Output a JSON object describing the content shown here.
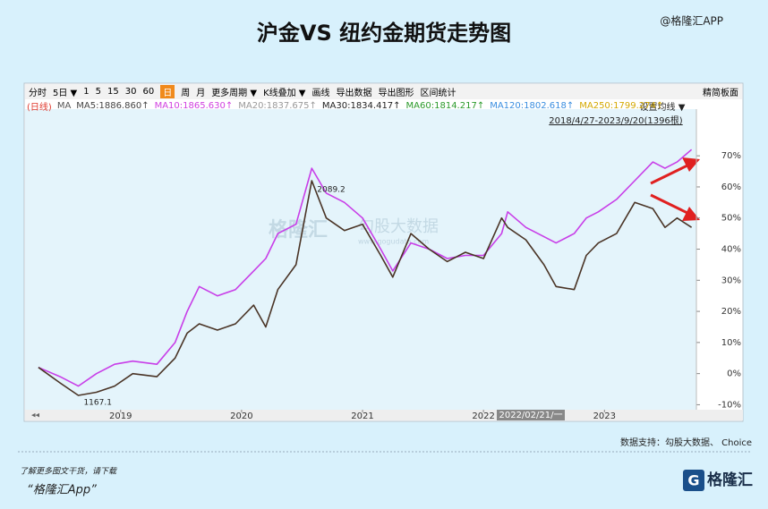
{
  "header": {
    "title": "沪金VS 纽约金期货走势图",
    "watermark": "@格隆汇APP"
  },
  "toolbar": {
    "items": [
      "分时",
      "5日 ▼",
      "1",
      "5",
      "15",
      "30",
      "60",
      "日",
      "周",
      "月",
      "更多周期 ▼",
      "K线叠加 ▼",
      "画线",
      "导出数据",
      "导出图形",
      "区间统计"
    ],
    "selected": "日",
    "right": "精简板面"
  },
  "ma_legend": [
    {
      "label": "(日线)",
      "color": "#e0382c"
    },
    {
      "label": "MA",
      "color": "#555555"
    },
    {
      "label": "MA5:1886.860↑",
      "color": "#444444"
    },
    {
      "label": "MA10:1865.630↑",
      "color": "#d040e0"
    },
    {
      "label": "MA20:1837.675↑",
      "color": "#999999"
    },
    {
      "label": "MA30:1834.417↑",
      "color": "#222222"
    },
    {
      "label": "MA60:1814.217↑",
      "color": "#2a9a2a"
    },
    {
      "label": "MA120:1802.618↑",
      "color": "#3a8ee0"
    },
    {
      "label": "MA250:1799.274↑",
      "color": "#d4a800"
    }
  ],
  "chart_data": {
    "type": "line",
    "setting": "设置均线 ▼",
    "range_label": "2018/4/27-2023/9/20(1396根)",
    "cursor_label": "2022/02/21/一",
    "background_text": [
      "格隆汇",
      "勾股大数据",
      "www.gogudata.com"
    ],
    "annotations": [
      "2089.2",
      "1167.1"
    ],
    "x": [
      2018.32,
      2018.5,
      2018.65,
      2018.8,
      2018.95,
      2019.1,
      2019.3,
      2019.45,
      2019.55,
      2019.65,
      2019.8,
      2019.95,
      2020.1,
      2020.2,
      2020.3,
      2020.45,
      2020.58,
      2020.7,
      2020.85,
      2021.0,
      2021.15,
      2021.25,
      2021.4,
      2021.55,
      2021.7,
      2021.85,
      2022.0,
      2022.15,
      2022.2,
      2022.35,
      2022.5,
      2022.6,
      2022.75,
      2022.85,
      2022.95,
      2023.1,
      2023.25,
      2023.4,
      2023.5,
      2023.6,
      2023.72
    ],
    "series": [
      {
        "color": "#c83ee8",
        "values": [
          2,
          -1,
          -4,
          0,
          3,
          4,
          3,
          10,
          20,
          28,
          25,
          27,
          33,
          37,
          45,
          48,
          66,
          58,
          55,
          50,
          40,
          33,
          42,
          40,
          37,
          38,
          38,
          45,
          52,
          47,
          44,
          42,
          45,
          50,
          52,
          56,
          62,
          68,
          66,
          68,
          72
        ]
      },
      {
        "color": "#4a3426",
        "values": [
          2,
          -3,
          -7,
          -6,
          -4,
          0,
          -1,
          5,
          13,
          16,
          14,
          16,
          22,
          15,
          27,
          35,
          62,
          50,
          46,
          48,
          38,
          31,
          45,
          40,
          36,
          39,
          37,
          50,
          47,
          43,
          35,
          28,
          27,
          38,
          42,
          45,
          55,
          53,
          47,
          50,
          47
        ]
      }
    ],
    "xlim": [
      2018.21,
      2023.76
    ],
    "ylim": [
      -11.6,
      85
    ],
    "xticks": [
      2019,
      2020,
      2021,
      2022,
      2023
    ],
    "yticks": [
      {
        "value": 70,
        "label": "70%"
      },
      {
        "value": 60,
        "label": "60%"
      },
      {
        "value": 50,
        "label": "50%"
      },
      {
        "value": 40,
        "label": "40%"
      },
      {
        "value": 30,
        "label": "30%"
      },
      {
        "value": 20,
        "label": "20%"
      },
      {
        "value": 10,
        "label": "10%"
      },
      {
        "value": 0,
        "label": "0%"
      },
      {
        "value": -10,
        "label": "-10%"
      }
    ],
    "grid": false
  },
  "footer": {
    "source": "数据支持：勾股大数据、 Choice",
    "promo": "了解更多图文干货，请下载",
    "app": "“格隆汇App”",
    "logo": "格隆汇"
  }
}
